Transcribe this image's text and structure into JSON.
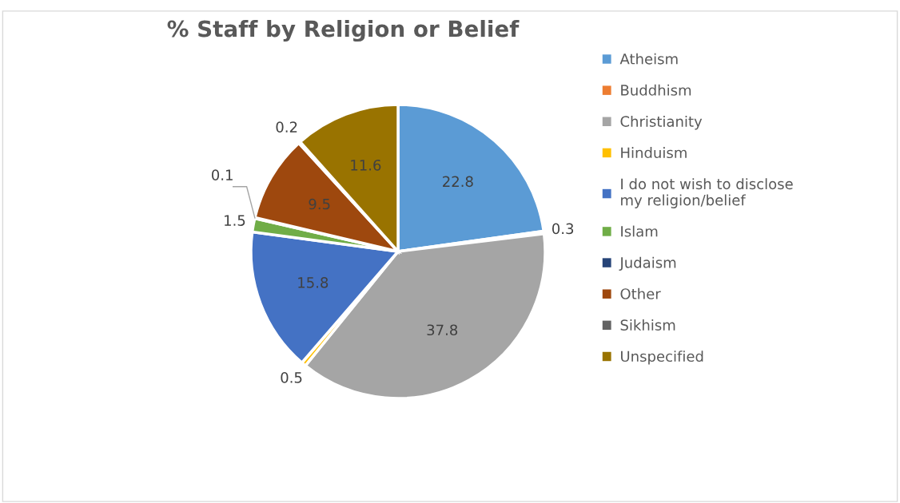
{
  "chart_data": {
    "type": "pie",
    "title": "% Staff by Religion or Belief",
    "categories": [
      "Atheism",
      "Buddhism",
      "Christianity",
      "Hinduism",
      "I do not wish to disclose my religion/belief",
      "Islam",
      "Judaism",
      "Other",
      "Sikhism",
      "Unspecified"
    ],
    "values": [
      22.8,
      0.3,
      37.8,
      0.5,
      15.8,
      1.5,
      0.1,
      9.5,
      0.2,
      11.6
    ],
    "colors": [
      "#5b9bd5",
      "#ed7d31",
      "#a5a5a5",
      "#ffc000",
      "#4472c4",
      "#70ad47",
      "#264478",
      "#9e480e",
      "#636363",
      "#997300"
    ],
    "data_labels": true,
    "legend": "right"
  }
}
